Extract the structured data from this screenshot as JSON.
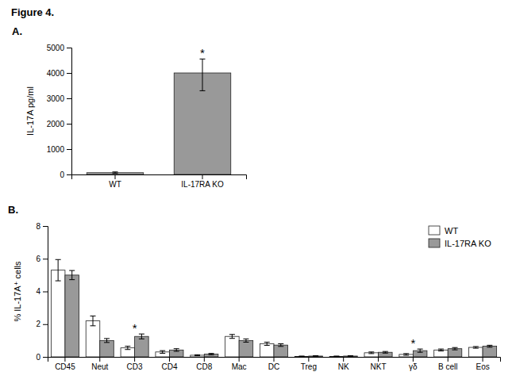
{
  "title": "Figure 4.",
  "chart_data": [
    {
      "type": "bar",
      "title": "A.",
      "categories": [
        "WT",
        "IL-17RA KO"
      ],
      "values": [
        70,
        4000
      ],
      "errors_upper": [
        30,
        550
      ],
      "errors_lower": [
        30,
        700
      ],
      "colors": [
        "#aaaaaa",
        "#999999"
      ],
      "ylabel": "IL-17A pg/ml",
      "ylim": [
        0,
        5000
      ],
      "yticks": [
        0,
        1000,
        2000,
        3000,
        4000,
        5000
      ],
      "annotations": [
        {
          "text": "*",
          "category": "IL-17RA KO"
        }
      ]
    },
    {
      "type": "bar",
      "title": "B.",
      "categories": [
        "CD45",
        "Neut",
        "CD3",
        "CD4",
        "CD8",
        "Mac",
        "DC",
        "Treg",
        "NK",
        "NKT",
        "γδ",
        "B cell",
        "Eos"
      ],
      "series": [
        {
          "name": "WT",
          "color": "#ffffff",
          "values": [
            5.3,
            2.2,
            0.55,
            0.3,
            0.1,
            1.25,
            0.8,
            0.03,
            0.03,
            0.25,
            0.15,
            0.42,
            0.58
          ],
          "errors": [
            0.65,
            0.3,
            0.1,
            0.08,
            0.03,
            0.12,
            0.1,
            0.02,
            0.02,
            0.05,
            0.05,
            0.06,
            0.05
          ]
        },
        {
          "name": "IL-17RA KO",
          "color": "#999999",
          "values": [
            5.0,
            1.0,
            1.25,
            0.42,
            0.17,
            1.0,
            0.72,
            0.05,
            0.05,
            0.28,
            0.38,
            0.5,
            0.65
          ],
          "errors": [
            0.28,
            0.12,
            0.15,
            0.08,
            0.04,
            0.1,
            0.08,
            0.02,
            0.02,
            0.05,
            0.1,
            0.07,
            0.06
          ]
        }
      ],
      "ylabel": "% IL-17A⁺ cells",
      "ylim": [
        0,
        8
      ],
      "yticks": [
        0,
        2,
        4,
        6,
        8
      ],
      "legend": "upper right",
      "annotations": [
        {
          "text": "*",
          "category": "CD3"
        },
        {
          "text": "*",
          "category": "γδ"
        }
      ]
    }
  ]
}
